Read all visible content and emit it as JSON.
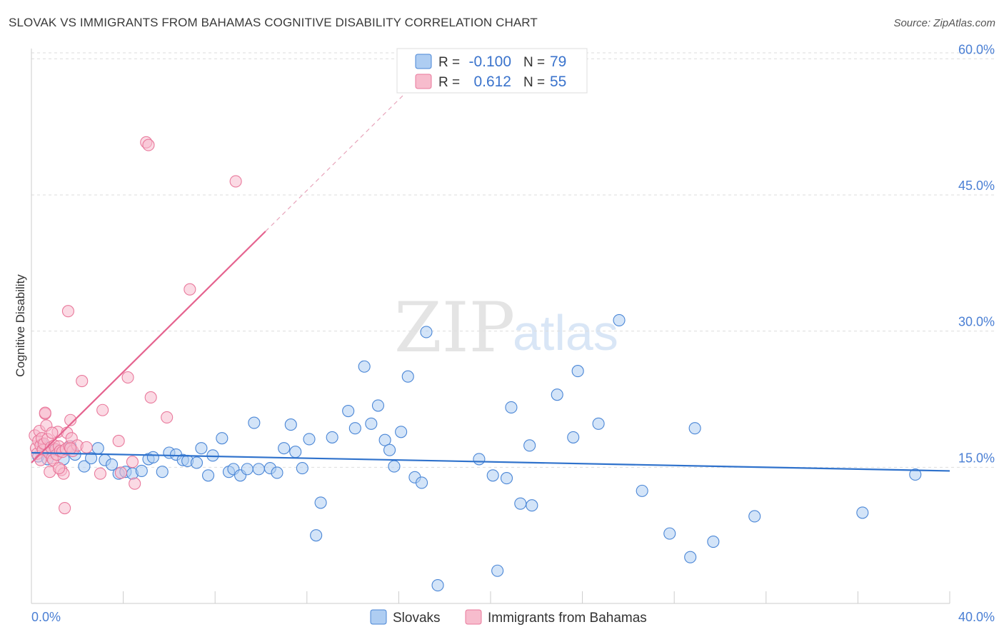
{
  "title": "SLOVAK VS IMMIGRANTS FROM BAHAMAS COGNITIVE DISABILITY CORRELATION CHART",
  "source": "Source: ZipAtlas.com",
  "watermark": {
    "part1": "ZIP",
    "part2": "atlas"
  },
  "colors": {
    "blue": "#4a86d6",
    "blue_fill": "#aecdf2",
    "blue_line": "#2f72cc",
    "pink": "#e9799c",
    "pink_fill": "#f7bccd",
    "pink_line": "#e5638f",
    "tick_text": "#4a7fd4",
    "grid": "#dddddd"
  },
  "legend": {
    "rows": [
      {
        "r_label": "R =",
        "r_value": "-0.100",
        "n_label": "N =",
        "n_value": "79",
        "color": "blue"
      },
      {
        "r_label": "R =",
        "r_value": "0.612",
        "n_label": "N =",
        "n_value": "55",
        "color": "pink"
      }
    ]
  },
  "chart_data": {
    "type": "scatter",
    "title": "SLOVAK VS IMMIGRANTS FROM BAHAMAS COGNITIVE DISABILITY CORRELATION CHART",
    "xlabel": "",
    "ylabel": "Cognitive Disability",
    "xlim": [
      0,
      40
    ],
    "ylim": [
      0,
      60.5
    ],
    "x_tick_labels": [
      "0.0%",
      "40.0%"
    ],
    "y_ticks": [
      15,
      30,
      45,
      60
    ],
    "y_tick_labels": [
      "15.0%",
      "30.0%",
      "45.0%",
      "60.0%"
    ],
    "grid": true,
    "series": [
      {
        "name": "Slovaks",
        "color": "blue",
        "trendline": {
          "x": [
            0,
            40
          ],
          "y": [
            16.6,
            14.6
          ],
          "dashed_extension": false
        },
        "points": [
          [
            0.3,
            16.2
          ],
          [
            0.5,
            17.5
          ],
          [
            0.7,
            15.9
          ],
          [
            0.9,
            16.8
          ],
          [
            1.1,
            16.9
          ],
          [
            1.4,
            15.9
          ],
          [
            1.7,
            17.3
          ],
          [
            1.9,
            16.4
          ],
          [
            2.3,
            15.1
          ],
          [
            2.6,
            16.0
          ],
          [
            2.9,
            17.1
          ],
          [
            3.2,
            15.8
          ],
          [
            3.5,
            15.3
          ],
          [
            3.8,
            14.3
          ],
          [
            4.1,
            14.5
          ],
          [
            4.4,
            14.3
          ],
          [
            4.8,
            14.6
          ],
          [
            5.1,
            15.9
          ],
          [
            5.3,
            16.1
          ],
          [
            5.7,
            14.5
          ],
          [
            6.0,
            16.6
          ],
          [
            6.3,
            16.4
          ],
          [
            6.6,
            15.8
          ],
          [
            6.8,
            15.7
          ],
          [
            7.2,
            15.5
          ],
          [
            7.4,
            17.1
          ],
          [
            7.7,
            14.1
          ],
          [
            7.9,
            16.3
          ],
          [
            8.3,
            18.2
          ],
          [
            8.6,
            14.5
          ],
          [
            8.8,
            14.8
          ],
          [
            9.1,
            14.1
          ],
          [
            9.4,
            14.8
          ],
          [
            9.7,
            19.9
          ],
          [
            9.9,
            14.8
          ],
          [
            10.4,
            14.9
          ],
          [
            10.7,
            14.4
          ],
          [
            11.0,
            17.1
          ],
          [
            11.3,
            19.7
          ],
          [
            11.5,
            16.7
          ],
          [
            11.8,
            14.9
          ],
          [
            12.1,
            18.1
          ],
          [
            12.6,
            11.1
          ],
          [
            12.4,
            7.5
          ],
          [
            13.1,
            18.3
          ],
          [
            13.8,
            21.2
          ],
          [
            14.1,
            19.3
          ],
          [
            14.5,
            26.1
          ],
          [
            14.8,
            19.8
          ],
          [
            15.1,
            21.8
          ],
          [
            15.4,
            18.0
          ],
          [
            15.6,
            16.9
          ],
          [
            15.8,
            15.1
          ],
          [
            16.1,
            18.9
          ],
          [
            16.4,
            25.0
          ],
          [
            16.7,
            13.9
          ],
          [
            17.0,
            13.3
          ],
          [
            17.2,
            29.9
          ],
          [
            17.7,
            2.0
          ],
          [
            19.5,
            15.9
          ],
          [
            20.1,
            14.1
          ],
          [
            20.3,
            3.6
          ],
          [
            20.7,
            13.8
          ],
          [
            20.9,
            21.6
          ],
          [
            21.3,
            11.0
          ],
          [
            21.7,
            17.4
          ],
          [
            21.8,
            10.8
          ],
          [
            22.9,
            23.0
          ],
          [
            23.6,
            18.3
          ],
          [
            23.8,
            25.6
          ],
          [
            24.7,
            19.8
          ],
          [
            25.6,
            31.2
          ],
          [
            26.6,
            12.4
          ],
          [
            27.8,
            7.7
          ],
          [
            28.7,
            5.1
          ],
          [
            28.9,
            19.3
          ],
          [
            29.7,
            6.8
          ],
          [
            31.5,
            9.6
          ],
          [
            36.2,
            10.0
          ],
          [
            38.5,
            14.2
          ]
        ]
      },
      {
        "name": "Immigrants from Bahamas",
        "color": "pink",
        "trendline": {
          "x": [
            0,
            10.2
          ],
          "y": [
            15.5,
            41.0
          ],
          "dashed_extension": true,
          "dash_to": [
            16.2,
            56.0
          ]
        },
        "points": [
          [
            0.15,
            18.5
          ],
          [
            0.2,
            17.1
          ],
          [
            0.25,
            16.5
          ],
          [
            0.3,
            17.9
          ],
          [
            0.35,
            19.0
          ],
          [
            0.4,
            17.4
          ],
          [
            0.45,
            18.2
          ],
          [
            0.5,
            16.9
          ],
          [
            0.55,
            17.6
          ],
          [
            0.6,
            20.9
          ],
          [
            0.65,
            19.6
          ],
          [
            0.7,
            18.1
          ],
          [
            0.75,
            16.6
          ],
          [
            0.8,
            14.5
          ],
          [
            0.85,
            17.2
          ],
          [
            0.9,
            16.0
          ],
          [
            0.95,
            15.8
          ],
          [
            1.0,
            17.4
          ],
          [
            1.05,
            17.0
          ],
          [
            1.1,
            16.4
          ],
          [
            1.15,
            18.9
          ],
          [
            1.2,
            17.3
          ],
          [
            1.25,
            16.8
          ],
          [
            1.3,
            14.7
          ],
          [
            1.35,
            16.7
          ],
          [
            1.4,
            14.3
          ],
          [
            1.45,
            10.5
          ],
          [
            1.5,
            17.0
          ],
          [
            1.55,
            18.8
          ],
          [
            1.6,
            32.2
          ],
          [
            1.65,
            17.3
          ],
          [
            1.7,
            20.2
          ],
          [
            1.75,
            18.2
          ],
          [
            1.8,
            16.8
          ],
          [
            2.0,
            17.4
          ],
          [
            2.4,
            17.2
          ],
          [
            2.2,
            24.5
          ],
          [
            3.1,
            21.3
          ],
          [
            3.0,
            14.3
          ],
          [
            3.8,
            17.9
          ],
          [
            3.9,
            14.4
          ],
          [
            4.2,
            24.9
          ],
          [
            4.4,
            15.6
          ],
          [
            4.5,
            13.2
          ],
          [
            5.2,
            22.7
          ],
          [
            5.0,
            50.8
          ],
          [
            5.1,
            50.5
          ],
          [
            5.9,
            20.5
          ],
          [
            6.9,
            34.6
          ],
          [
            8.9,
            46.5
          ],
          [
            0.6,
            21.0
          ],
          [
            0.9,
            18.8
          ],
          [
            1.2,
            14.9
          ],
          [
            0.4,
            15.8
          ],
          [
            1.7,
            17.1
          ]
        ]
      }
    ]
  },
  "bottom_legend": [
    {
      "label": "Slovaks",
      "color": "blue"
    },
    {
      "label": "Immigrants from Bahamas",
      "color": "pink"
    }
  ]
}
